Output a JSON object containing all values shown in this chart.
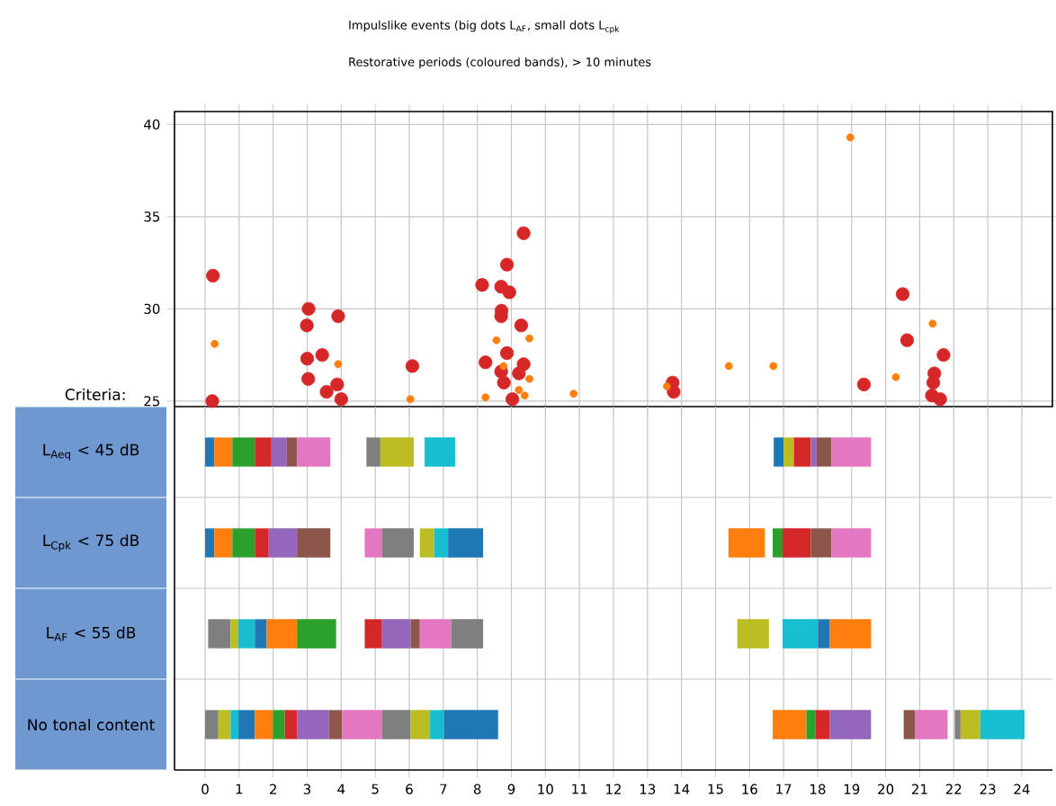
{
  "chart_data": [
    {
      "type": "scatter",
      "title": "Impulslike events (big dots L$_{AF}$, small dots L$_{cpk}$",
      "subtitle": "Restorative periods (coloured bands), > 10 minutes",
      "xlim": [
        -0.9,
        24.9
      ],
      "xticks": [
        0,
        1,
        2,
        3,
        4,
        5,
        6,
        7,
        8,
        9,
        10,
        11,
        12,
        13,
        14,
        15,
        16,
        17,
        18,
        19,
        20,
        21,
        22,
        23,
        24
      ],
      "ylim": [
        24.7,
        40.7
      ],
      "yticks": [
        25,
        30,
        35,
        40
      ],
      "grid": true,
      "tick_labels": "y",
      "series": [
        {
          "color": "#d62728",
          "x": [
            0.23,
            0.21,
            3.04,
            2.99,
            3.0,
            3.03,
            3.44,
            3.57,
            3.88,
            3.91,
            4.0,
            6.09,
            8.14,
            8.7,
            8.94,
            8.87,
            8.71,
            8.7,
            9.36,
            9.29,
            8.24,
            8.7,
            8.87,
            9.36,
            9.22,
            9.03,
            8.78,
            13.74,
            13.77,
            19.36,
            20.5,
            20.63,
            21.7,
            21.43,
            21.4,
            21.36,
            21.6
          ],
          "values": [
            31.8,
            25.0,
            30.0,
            29.1,
            27.3,
            26.2,
            27.5,
            25.5,
            25.9,
            29.6,
            25.1,
            26.9,
            31.3,
            31.2,
            30.9,
            32.4,
            29.9,
            29.6,
            34.1,
            29.1,
            27.1,
            26.6,
            27.6,
            27.0,
            26.5,
            25.1,
            26.0,
            26.0,
            25.5,
            25.9,
            30.8,
            28.3,
            27.5,
            26.5,
            26.0,
            25.3,
            25.1
          ]
        },
        {
          "color": "#ff7f0e",
          "x": [
            0.28,
            3.91,
            6.03,
            8.24,
            8.56,
            8.77,
            9.53,
            9.53,
            9.39,
            9.22,
            10.83,
            13.57,
            15.39,
            16.7,
            18.96,
            20.3,
            21.38
          ],
          "values": [
            28.1,
            27.0,
            25.1,
            25.2,
            28.3,
            26.9,
            28.4,
            26.2,
            25.3,
            25.6,
            25.4,
            25.8,
            26.9,
            26.9,
            39.3,
            26.3,
            29.2
          ]
        }
      ]
    },
    {
      "type": "bar",
      "orientation": "horizontal",
      "ylabel": "Criteria:",
      "categories": [
        "L$_{Aeq}$ < 45 dB",
        "L$_{Cpk}$ < 75 dB",
        "L$_{AF}$ < 55 dB",
        "No tonal content"
      ],
      "xlim": [
        -0.9,
        24.9
      ],
      "xticks": [
        0,
        1,
        2,
        3,
        4,
        5,
        6,
        7,
        8,
        9,
        10,
        11,
        12,
        13,
        14,
        15,
        16,
        17,
        18,
        19,
        20,
        21,
        22,
        23,
        24
      ],
      "grid": true,
      "series": [
        {
          "values": [
            0.27,
            0.27,
            0.66,
            0.39
          ],
          "base": [
            0,
            0,
            0.09,
            0
          ],
          "colors": [
            "#1f77b4",
            "#1f77b4",
            "#7f7f7f",
            "#7f7f7f"
          ]
        },
        {
          "values": [
            0.53,
            0.53,
            0.23,
            0.36
          ],
          "base": [
            0.27,
            0.27,
            0.75,
            0.39
          ],
          "colors": [
            "#ff7f0e",
            "#ff7f0e",
            "#bcbd22",
            "#bcbd22"
          ]
        },
        {
          "values": [
            0.66,
            0.66,
            0.48,
            0.23
          ],
          "base": [
            0.8,
            0.8,
            0.98,
            0.75
          ],
          "colors": [
            "#2ca02c",
            "#2ca02c",
            "#17becf",
            "#17becf"
          ]
        },
        {
          "values": [
            0.49,
            0.41,
            0.35,
            0.48
          ],
          "base": [
            1.46,
            1.46,
            1.46,
            0.98
          ],
          "colors": [
            "#d62728",
            "#d62728",
            "#1f77b4",
            "#1f77b4"
          ]
        },
        {
          "values": [
            0.45,
            0.83,
            0.89,
            0.53
          ],
          "base": [
            1.95,
            1.87,
            1.81,
            1.46
          ],
          "colors": [
            "#9467bd",
            "#9467bd",
            "#ff7f0e",
            "#ff7f0e"
          ]
        },
        {
          "values": [
            0.3,
            0.98,
            1.15,
            0.35
          ],
          "base": [
            2.4,
            2.7,
            2.7,
            1.99
          ],
          "colors": [
            "#8c564b",
            "#8c564b",
            "#2ca02c",
            "#2ca02c"
          ]
        },
        {
          "values": [
            0.98,
            0.51,
            0.51,
            0.36
          ],
          "base": [
            2.7,
            4.69,
            4.69,
            2.34
          ],
          "colors": [
            "#e377c2",
            "#e377c2",
            "#d62728",
            "#d62728"
          ]
        },
        {
          "values": [
            0.41,
            0.93,
            0.84,
            0.94
          ],
          "base": [
            4.74,
            5.2,
            5.2,
            2.7
          ],
          "colors": [
            "#7f7f7f",
            "#7f7f7f",
            "#9467bd",
            "#9467bd"
          ]
        },
        {
          "values": [
            0.98,
            0.42,
            0.27,
            0.39
          ],
          "base": [
            5.15,
            6.31,
            6.04,
            3.64
          ],
          "colors": [
            "#bcbd22",
            "#bcbd22",
            "#8c564b",
            "#8c564b"
          ]
        },
        {
          "values": [
            0.9,
            0.41,
            0.92,
            1.17
          ],
          "base": [
            6.45,
            6.73,
            6.31,
            4.03
          ],
          "colors": [
            "#17becf",
            "#17becf",
            "#e377c2",
            "#e377c2"
          ]
        },
        {
          "values": [
            0.29,
            1.03,
            0.94,
            0.84
          ],
          "base": [
            16.71,
            7.14,
            7.23,
            5.2
          ],
          "colors": [
            "#1f77b4",
            "#1f77b4",
            "#7f7f7f",
            "#7f7f7f"
          ]
        },
        {
          "values": [
            0.3,
            1.07,
            0.93,
            0.57
          ],
          "base": [
            17.0,
            15.38,
            15.64,
            6.04
          ],
          "colors": [
            "#bcbd22",
            "#ff7f0e",
            "#bcbd22",
            "#bcbd22"
          ]
        },
        {
          "values": [
            0.5,
            0.29,
            1.04,
            0.41
          ],
          "base": [
            17.3,
            16.68,
            16.97,
            6.61
          ],
          "colors": [
            "#d62728",
            "#2ca02c",
            "#17becf",
            "#17becf"
          ]
        },
        {
          "values": [
            0.17,
            0.83,
            0.35,
            1.59
          ],
          "base": [
            17.8,
            16.97,
            18.01,
            7.02
          ],
          "colors": [
            "#9467bd",
            "#d62728",
            "#1f77b4",
            "#1f77b4"
          ]
        },
        {
          "values": [
            0.44,
            0.61,
            1.21,
            0.99
          ],
          "base": [
            17.97,
            17.8,
            18.36,
            16.68
          ],
          "colors": [
            "#8c564b",
            "#8c564b",
            "#ff7f0e",
            "#ff7f0e"
          ]
        },
        {
          "values": [
            1.16,
            1.16,
            null,
            0.26
          ],
          "base": [
            18.41,
            18.41,
            null,
            17.67
          ],
          "colors": [
            "#e377c2",
            "#e377c2",
            null,
            "#2ca02c"
          ]
        },
        {
          "values": [
            null,
            null,
            null,
            0.43
          ],
          "base": [
            null,
            null,
            null,
            17.93
          ],
          "colors": [
            null,
            null,
            null,
            "#d62728"
          ]
        },
        {
          "values": [
            null,
            null,
            null,
            1.21
          ],
          "base": [
            null,
            null,
            null,
            18.36
          ],
          "colors": [
            null,
            null,
            null,
            "#9467bd"
          ]
        },
        {
          "values": [
            null,
            null,
            null,
            0.34
          ],
          "base": [
            null,
            null,
            null,
            20.53
          ],
          "colors": [
            null,
            null,
            null,
            "#8c564b"
          ]
        },
        {
          "values": [
            null,
            null,
            null,
            0.95
          ],
          "base": [
            null,
            null,
            null,
            20.87
          ],
          "colors": [
            null,
            null,
            null,
            "#e377c2"
          ]
        },
        {
          "values": [
            null,
            null,
            null,
            0.17
          ],
          "base": [
            null,
            null,
            null,
            22.03
          ],
          "colors": [
            null,
            null,
            null,
            "#7f7f7f"
          ]
        },
        {
          "values": [
            null,
            null,
            null,
            0.58
          ],
          "base": [
            null,
            null,
            null,
            22.2
          ],
          "colors": [
            null,
            null,
            null,
            "#bcbd22"
          ]
        },
        {
          "values": [
            null,
            null,
            null,
            1.3
          ],
          "base": [
            null,
            null,
            null,
            22.78
          ],
          "colors": [
            null,
            null,
            null,
            "#17becf"
          ]
        }
      ]
    }
  ]
}
